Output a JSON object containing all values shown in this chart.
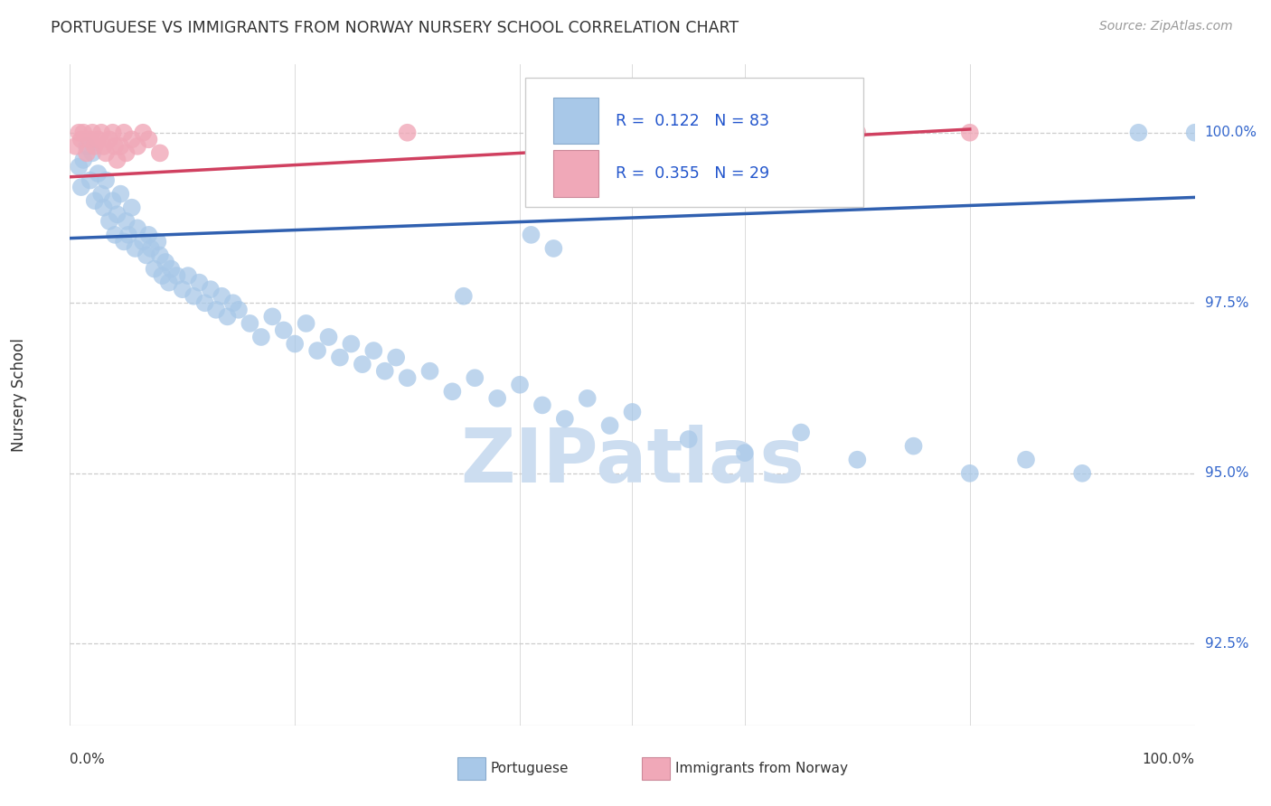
{
  "title": "PORTUGUESE VS IMMIGRANTS FROM NORWAY NURSERY SCHOOL CORRELATION CHART",
  "source": "Source: ZipAtlas.com",
  "ylabel": "Nursery School",
  "watermark": "ZIPatlas",
  "blue_R": 0.122,
  "blue_N": 83,
  "pink_R": 0.355,
  "pink_N": 29,
  "blue_color": "#a8c8e8",
  "pink_color": "#f0a8b8",
  "blue_line_color": "#3060b0",
  "pink_line_color": "#d04060",
  "legend_label_blue": "Portuguese",
  "legend_label_pink": "Immigrants from Norway",
  "y_ticks": [
    92.5,
    95.0,
    97.5,
    100.0
  ],
  "y_tick_labels": [
    "92.5%",
    "95.0%",
    "97.5%",
    "100.0%"
  ],
  "ylim": [
    91.3,
    101.0
  ],
  "xlim": [
    0.0,
    1.0
  ],
  "blue_x": [
    0.008,
    0.01,
    0.012,
    0.015,
    0.018,
    0.02,
    0.022,
    0.025,
    0.028,
    0.03,
    0.032,
    0.035,
    0.038,
    0.04,
    0.042,
    0.045,
    0.048,
    0.05,
    0.052,
    0.055,
    0.058,
    0.06,
    0.065,
    0.068,
    0.07,
    0.072,
    0.075,
    0.078,
    0.08,
    0.082,
    0.085,
    0.088,
    0.09,
    0.095,
    0.1,
    0.105,
    0.11,
    0.115,
    0.12,
    0.125,
    0.13,
    0.135,
    0.14,
    0.145,
    0.15,
    0.16,
    0.17,
    0.18,
    0.19,
    0.2,
    0.21,
    0.22,
    0.23,
    0.24,
    0.25,
    0.26,
    0.27,
    0.28,
    0.29,
    0.3,
    0.32,
    0.34,
    0.36,
    0.38,
    0.4,
    0.42,
    0.44,
    0.46,
    0.48,
    0.5,
    0.55,
    0.6,
    0.65,
    0.7,
    0.75,
    0.8,
    0.85,
    0.9,
    0.95,
    1.0,
    0.41,
    0.43,
    0.35
  ],
  "blue_y": [
    99.5,
    99.2,
    99.6,
    99.8,
    99.3,
    99.7,
    99.0,
    99.4,
    99.1,
    98.9,
    99.3,
    98.7,
    99.0,
    98.5,
    98.8,
    99.1,
    98.4,
    98.7,
    98.5,
    98.9,
    98.3,
    98.6,
    98.4,
    98.2,
    98.5,
    98.3,
    98.0,
    98.4,
    98.2,
    97.9,
    98.1,
    97.8,
    98.0,
    97.9,
    97.7,
    97.9,
    97.6,
    97.8,
    97.5,
    97.7,
    97.4,
    97.6,
    97.3,
    97.5,
    97.4,
    97.2,
    97.0,
    97.3,
    97.1,
    96.9,
    97.2,
    96.8,
    97.0,
    96.7,
    96.9,
    96.6,
    96.8,
    96.5,
    96.7,
    96.4,
    96.5,
    96.2,
    96.4,
    96.1,
    96.3,
    96.0,
    95.8,
    96.1,
    95.7,
    95.9,
    95.5,
    95.3,
    95.6,
    95.2,
    95.4,
    95.0,
    95.2,
    95.0,
    100.0,
    100.0,
    98.5,
    98.3,
    97.6
  ],
  "pink_x": [
    0.005,
    0.008,
    0.01,
    0.012,
    0.015,
    0.018,
    0.02,
    0.022,
    0.025,
    0.028,
    0.03,
    0.032,
    0.035,
    0.038,
    0.04,
    0.042,
    0.045,
    0.048,
    0.05,
    0.055,
    0.06,
    0.065,
    0.07,
    0.08,
    0.3,
    0.5,
    0.6,
    0.7,
    0.8
  ],
  "pink_y": [
    99.8,
    100.0,
    99.9,
    100.0,
    99.7,
    99.9,
    100.0,
    99.8,
    99.9,
    100.0,
    99.8,
    99.7,
    99.9,
    100.0,
    99.8,
    99.6,
    99.8,
    100.0,
    99.7,
    99.9,
    99.8,
    100.0,
    99.9,
    99.7,
    100.0,
    100.0,
    100.0,
    100.0,
    100.0
  ],
  "blue_line_x": [
    0.0,
    1.0
  ],
  "blue_line_y": [
    98.45,
    99.05
  ],
  "pink_line_x": [
    0.0,
    0.8
  ],
  "pink_line_y": [
    99.35,
    100.05
  ]
}
